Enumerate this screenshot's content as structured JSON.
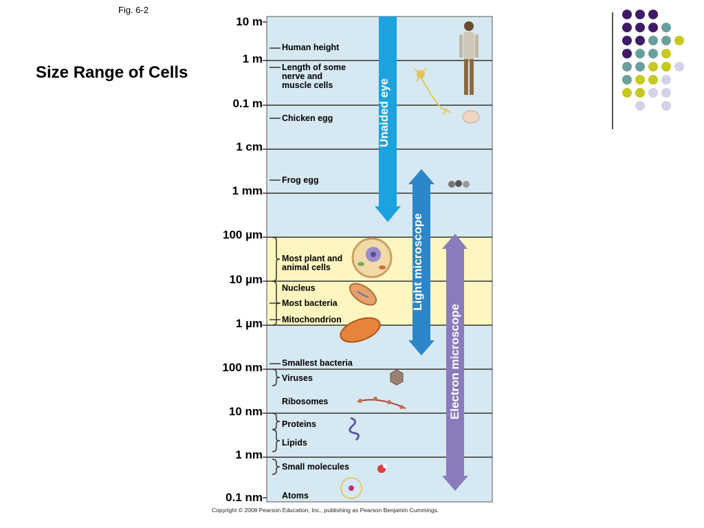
{
  "fig_label": "Fig. 6-2",
  "title": "Size Range of Cells",
  "scale": [
    "10 m",
    "1 m",
    "0.1 m",
    "1 cm",
    "1 mm",
    "100 µm",
    "10 µm",
    "1 µm",
    "100 nm",
    "10 nm",
    "1 nm",
    "0.1 nm"
  ],
  "items": [
    {
      "label": "Human height",
      "icon": "human-figure-icon"
    },
    {
      "label": "Length of some\nnerve and\nmuscle cells",
      "icon": "nerve-cell-icon"
    },
    {
      "label": "Chicken egg",
      "icon": "chicken-egg-icon"
    },
    {
      "label": "Frog egg",
      "icon": "frog-eggs-icon"
    },
    {
      "label": "Most plant and\nanimal cells",
      "icon": "plant-cell-icon"
    },
    {
      "label": "Nucleus",
      "icon": ""
    },
    {
      "label": "Most bacteria",
      "icon": "bacterium-icon"
    },
    {
      "label": "Mitochondrion",
      "icon": "mitochondrion-icon"
    },
    {
      "label": "Smallest bacteria",
      "icon": ""
    },
    {
      "label": "Viruses",
      "icon": "virus-icon"
    },
    {
      "label": "Ribosomes",
      "icon": "ribosomes-icon"
    },
    {
      "label": "Proteins",
      "icon": "protein-icon"
    },
    {
      "label": "Lipids",
      "icon": ""
    },
    {
      "label": "Small molecules",
      "icon": "molecule-icon"
    },
    {
      "label": "Atoms",
      "icon": "atom-icon"
    }
  ],
  "ranges": [
    {
      "label": "Unaided eye",
      "from": "10 m",
      "to": "100 µm",
      "color": "#1aa3e0"
    },
    {
      "label": "Light microscope",
      "from": "1 cm",
      "to": "100 nm",
      "color": "#2d86c7"
    },
    {
      "label": "Electron microscope",
      "from": "100 µm",
      "to": "0.1 nm",
      "color": "#8a7bbd"
    }
  ],
  "colors": {
    "panel": "#d6e8f2",
    "cell_band": "#fdf6c0",
    "dot_purple": "#3e1a67",
    "dot_teal": "#6aa09c",
    "dot_lime": "#c7c822",
    "dot_lavender": "#d3d2e8"
  },
  "copyright": "Copyright © 2008 Pearson Education, Inc., publishing as Pearson Benjamin Cummings."
}
